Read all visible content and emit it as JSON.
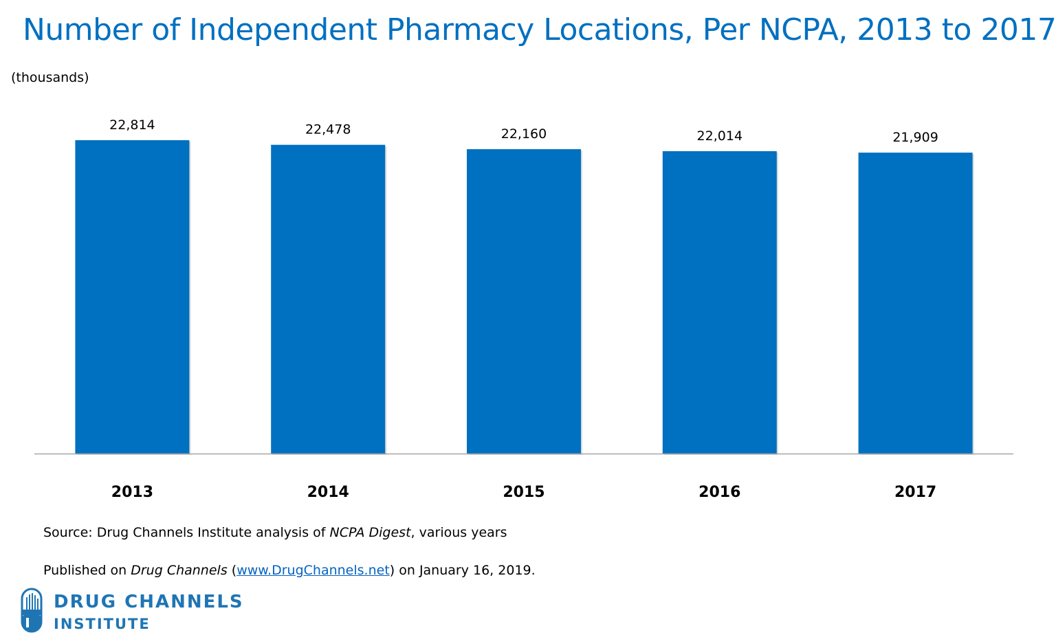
{
  "title": "Number of Independent Pharmacy Locations, Per NCPA, 2013 to 2017",
  "units_label": "(thousands)",
  "colors": {
    "title": "#0070c0",
    "bar": "#0070c0",
    "link": "#0563c1",
    "logo": "#1f75b4"
  },
  "chart_data": {
    "type": "bar",
    "title": "Number of Independent Pharmacy Locations, Per NCPA, 2013 to 2017",
    "ylabel": "(thousands)",
    "categories": [
      "2013",
      "2014",
      "2015",
      "2016",
      "2017"
    ],
    "values": [
      22814,
      22478,
      22160,
      22014,
      21909
    ],
    "data_labels": [
      "22,814",
      "22,478",
      "22,160",
      "22,014",
      "21,909"
    ],
    "ylim": [
      0,
      22814
    ],
    "grid": false,
    "legend": "none"
  },
  "footer": {
    "source_prefix": "Source: Drug Channels Institute analysis of ",
    "source_italic": "NCPA Digest",
    "source_suffix": ", various years",
    "published_prefix": "Published on ",
    "published_italic": "Drug Channels",
    "published_open": " (",
    "published_link": "www.DrugChannels.net",
    "published_suffix": ") on January 16, 2019."
  },
  "logo": {
    "line1": "DRUG CHANNELS",
    "line2": "INSTITUTE",
    "icon": "drug-channels-logo-icon"
  }
}
